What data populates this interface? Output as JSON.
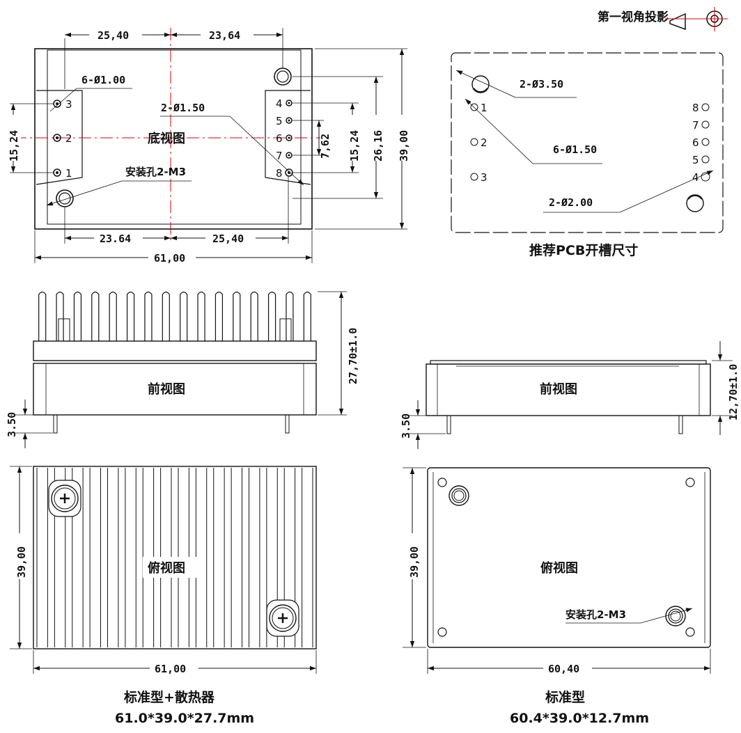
{
  "projection": {
    "label": "第一视角投影"
  },
  "bottom_view": {
    "title": "底视图",
    "dim_top_left": "25,40",
    "dim_top_right": "23,64",
    "dim_bottom_left": "23.64",
    "dim_bottom_right": "25,40",
    "dim_width": "61,00",
    "dim_height": "39,00",
    "dim_left_span": "15,24",
    "dim_right_inner": "7,62",
    "dim_right_span": "15,24",
    "dim_right_outer": "26,16",
    "note_pins_left": "6-Ø1.00",
    "note_pins_right": "2-Ø1.50",
    "note_mount": "安装孔2-M3",
    "left_pins": [
      "3",
      "2",
      "1"
    ],
    "right_pins": [
      "4",
      "5",
      "6",
      "7",
      "8"
    ]
  },
  "pcb_view": {
    "title": "推荐PCB开槽尺寸",
    "note_large_hole": "2-Ø3.50",
    "note_signal_holes": "6-Ø1.50",
    "note_power_hole": "2-Ø2.00",
    "left_pins": [
      "1",
      "2",
      "3"
    ],
    "right_pins": [
      "8",
      "7",
      "6",
      "5",
      "4"
    ]
  },
  "front_view_heatsink": {
    "title": "前视图",
    "dim_height": "27,70±1.0",
    "dim_pin": "3.50"
  },
  "front_view_standard": {
    "title": "前视图",
    "dim_height": "12,70±1.0",
    "dim_pin": "3.50"
  },
  "top_view_heatsink": {
    "title": "俯视图",
    "dim_height": "39,00",
    "dim_width": "61,00",
    "caption_name": "标准型+散热器",
    "caption_size": "61.0*39.0*27.7mm"
  },
  "top_view_standard": {
    "title": "俯视图",
    "dim_height": "39,00",
    "dim_width": "60,40",
    "note_mount": "安装孔2-M3",
    "caption_name": "标准型",
    "caption_size": "60.4*39.0*12.7mm"
  }
}
